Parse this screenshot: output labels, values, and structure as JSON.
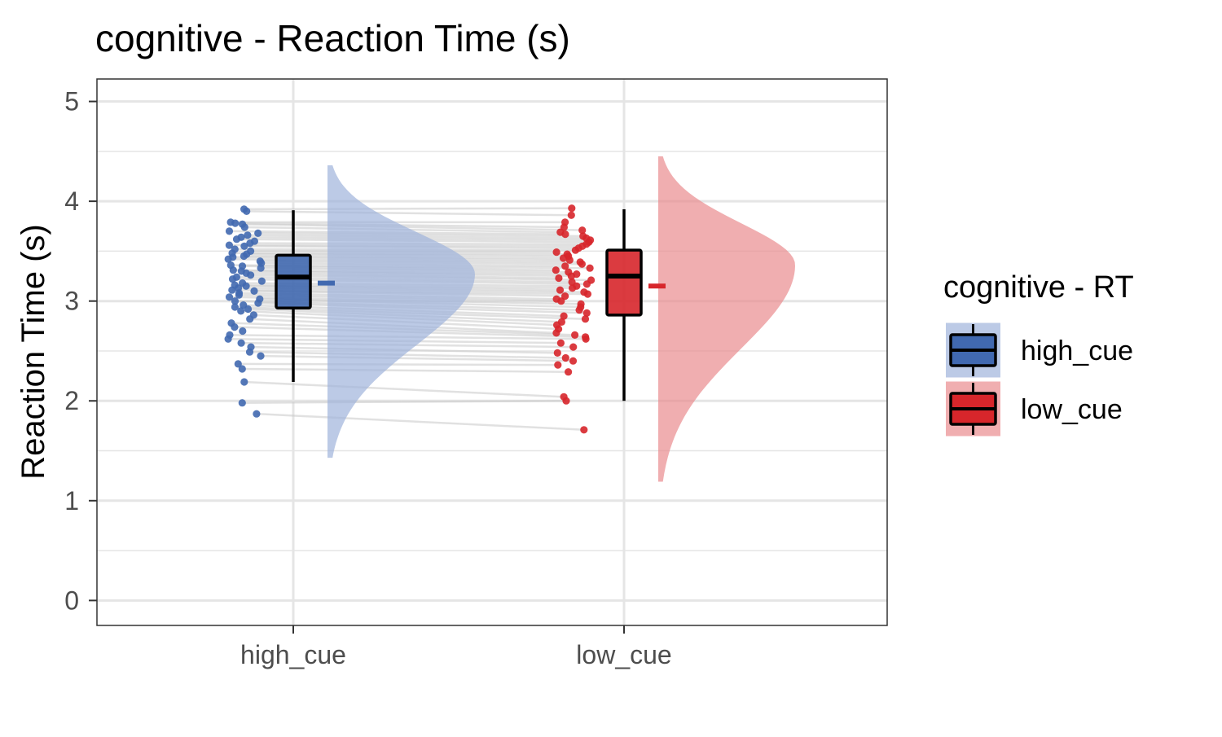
{
  "chart_data": {
    "type": "raincloud",
    "title": "cognitive  - Reaction Time (s)",
    "xlabel": "",
    "ylabel": "Reaction Time (s)",
    "ylim": [
      -0.25,
      5.225
    ],
    "y_ticks": [
      0,
      1,
      2,
      3,
      4,
      5
    ],
    "categories": [
      "high_cue",
      "low_cue"
    ],
    "grid": true,
    "legend": {
      "title": "cognitive  - RT",
      "placement": "right",
      "entries": [
        "high_cue",
        "low_cue"
      ]
    },
    "colors": {
      "high_cue": "#4169b0",
      "low_cue": "#d7262b",
      "high_cue_density": "#9fb4dc",
      "low_cue_density": "#e98c8f",
      "paired_lines": "#c8c8c8",
      "grid": "#e5e5e5"
    },
    "series": [
      {
        "name": "high_cue",
        "box": {
          "q1": 2.93,
          "median": 3.24,
          "q3": 3.46,
          "whisker_low": 2.19,
          "whisker_high": 3.91
        },
        "mean": 3.18,
        "density_range": [
          1.43,
          4.36
        ],
        "density_peak": 3.27,
        "points": [
          3.92,
          3.9,
          3.79,
          3.78,
          3.77,
          3.74,
          3.7,
          3.68,
          3.66,
          3.64,
          3.62,
          3.6,
          3.58,
          3.56,
          3.55,
          3.52,
          3.5,
          3.48,
          3.47,
          3.45,
          3.44,
          3.42,
          3.4,
          3.38,
          3.36,
          3.35,
          3.33,
          3.31,
          3.3,
          3.28,
          3.26,
          3.24,
          3.22,
          3.2,
          3.18,
          3.16,
          3.15,
          3.13,
          3.11,
          3.1,
          3.08,
          3.06,
          3.04,
          3.02,
          3.0,
          2.98,
          2.96,
          2.94,
          2.92,
          2.9,
          2.86,
          2.82,
          2.78,
          2.74,
          2.7,
          2.66,
          2.62,
          2.58,
          2.54,
          2.49,
          2.45,
          2.37,
          2.32,
          2.19,
          1.98,
          1.87
        ]
      },
      {
        "name": "low_cue",
        "box": {
          "q1": 2.86,
          "median": 3.25,
          "q3": 3.51,
          "whisker_low": 2.0,
          "whisker_high": 3.92
        },
        "mean": 3.15,
        "density_range": [
          1.19,
          4.45
        ],
        "density_peak": 3.36,
        "points": [
          3.93,
          3.86,
          3.79,
          3.74,
          3.71,
          3.69,
          3.67,
          3.65,
          3.63,
          3.61,
          3.59,
          3.57,
          3.55,
          3.53,
          3.51,
          3.49,
          3.47,
          3.45,
          3.43,
          3.41,
          3.39,
          3.37,
          3.35,
          3.33,
          3.31,
          3.29,
          3.27,
          3.25,
          3.23,
          3.21,
          3.19,
          3.17,
          3.15,
          3.13,
          3.11,
          3.09,
          3.07,
          3.05,
          3.02,
          3.0,
          2.97,
          2.94,
          2.91,
          2.88,
          2.85,
          2.82,
          2.79,
          2.76,
          2.72,
          2.68,
          2.66,
          2.64,
          2.62,
          2.58,
          2.54,
          2.48,
          2.43,
          2.4,
          2.36,
          2.29,
          2.04,
          2.0,
          1.71
        ]
      }
    ]
  }
}
